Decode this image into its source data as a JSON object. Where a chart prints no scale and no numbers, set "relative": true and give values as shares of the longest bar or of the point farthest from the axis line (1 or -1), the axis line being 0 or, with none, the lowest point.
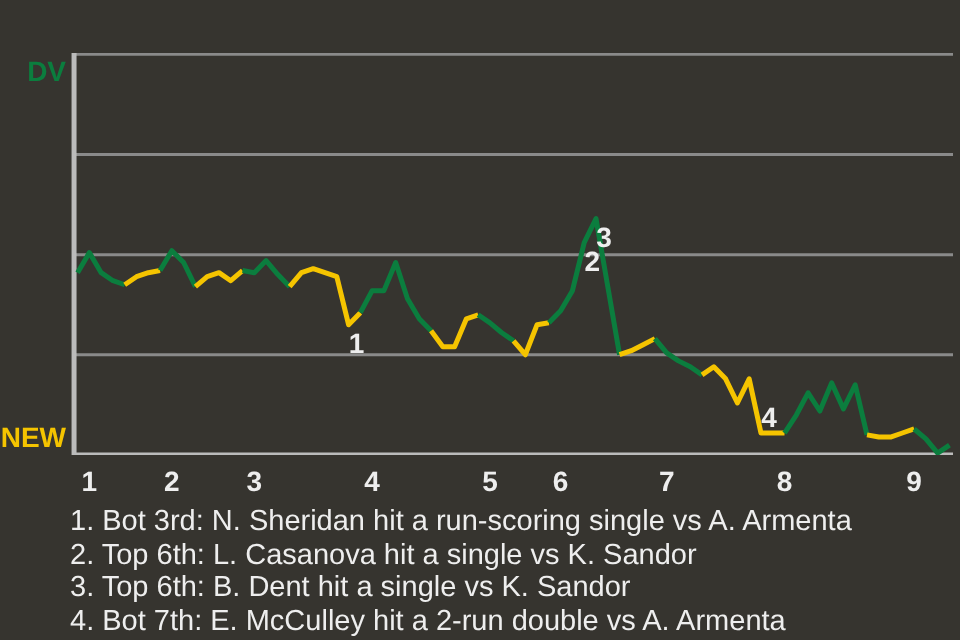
{
  "chart_data": {
    "type": "line",
    "relative": true,
    "marker": "none",
    "line_style": "solid",
    "ref_lines": [
      {
        "axis": "y",
        "value": 0.424,
        "color": "#8a8a8a"
      },
      {
        "axis": "y",
        "value": 0.847,
        "color": "#8a8a8a"
      },
      {
        "axis": "y",
        "value": 1.271,
        "color": "#8a8a8a"
      },
      {
        "axis": "y",
        "value": 1.695,
        "color": "#8a8a8a"
      }
    ],
    "categories": [
      null,
      "1",
      null,
      null,
      null,
      null,
      null,
      null,
      "2",
      null,
      null,
      null,
      null,
      null,
      null,
      "3",
      null,
      null,
      null,
      null,
      null,
      null,
      null,
      null,
      null,
      "4",
      null,
      null,
      null,
      null,
      null,
      null,
      null,
      null,
      null,
      "5",
      null,
      null,
      null,
      null,
      null,
      "6",
      null,
      null,
      null,
      null,
      null,
      null,
      null,
      null,
      "7",
      null,
      null,
      null,
      null,
      null,
      null,
      null,
      null,
      null,
      "8",
      null,
      null,
      null,
      null,
      null,
      null,
      null,
      null,
      null,
      null,
      "9",
      null,
      null,
      null
    ],
    "series": [
      {
        "color": "#0b7d3e",
        "values": [
          0.771,
          0.856,
          0.771,
          0.737,
          0.72,
          null,
          null,
          null,
          null,
          null,
          null,
          null,
          null,
          null,
          null,
          null,
          null,
          null,
          null,
          null,
          null,
          null,
          null,
          null,
          null,
          null,
          null,
          null,
          null,
          null,
          null,
          null,
          null,
          null,
          null,
          null,
          null,
          null,
          null,
          null,
          null,
          null,
          null,
          null,
          null,
          null,
          null,
          null,
          null,
          null,
          null,
          null,
          null,
          null,
          null,
          null,
          null,
          null,
          null,
          null,
          null,
          null,
          null,
          null,
          null,
          null,
          null,
          null,
          null,
          null,
          null,
          null,
          null,
          null,
          null
        ]
      },
      {
        "color": "#f5c400",
        "values": [
          null,
          null,
          null,
          null,
          0.72,
          0.754,
          0.771,
          0.78,
          null,
          null,
          null,
          null,
          null,
          null,
          null,
          null,
          null,
          null,
          null,
          null,
          null,
          null,
          null,
          null,
          null,
          null,
          null,
          null,
          null,
          null,
          null,
          null,
          null,
          null,
          null,
          null,
          null,
          null,
          null,
          null,
          null,
          null,
          null,
          null,
          null,
          null,
          null,
          null,
          null,
          null,
          null,
          null,
          null,
          null,
          null,
          null,
          null,
          null,
          null,
          null,
          null,
          null,
          null,
          null,
          null,
          null,
          null,
          null,
          null,
          null,
          null,
          null,
          null,
          null,
          null
        ]
      },
      {
        "color": "#0b7d3e",
        "values": [
          null,
          null,
          null,
          null,
          null,
          null,
          null,
          0.78,
          0.864,
          0.814,
          0.712,
          null,
          null,
          null,
          null,
          null,
          null,
          null,
          null,
          null,
          null,
          null,
          null,
          null,
          null,
          null,
          null,
          null,
          null,
          null,
          null,
          null,
          null,
          null,
          null,
          null,
          null,
          null,
          null,
          null,
          null,
          null,
          null,
          null,
          null,
          null,
          null,
          null,
          null,
          null,
          null,
          null,
          null,
          null,
          null,
          null,
          null,
          null,
          null,
          null,
          null,
          null,
          null,
          null,
          null,
          null,
          null,
          null,
          null,
          null,
          null,
          null,
          null,
          null,
          null
        ]
      },
      {
        "color": "#f5c400",
        "values": [
          null,
          null,
          null,
          null,
          null,
          null,
          null,
          null,
          null,
          null,
          0.712,
          0.754,
          0.771,
          0.737,
          0.78,
          null,
          null,
          null,
          null,
          null,
          null,
          null,
          null,
          null,
          null,
          null,
          null,
          null,
          null,
          null,
          null,
          null,
          null,
          null,
          null,
          null,
          null,
          null,
          null,
          null,
          null,
          null,
          null,
          null,
          null,
          null,
          null,
          null,
          null,
          null,
          null,
          null,
          null,
          null,
          null,
          null,
          null,
          null,
          null,
          null,
          null,
          null,
          null,
          null,
          null,
          null,
          null,
          null,
          null,
          null,
          null,
          null,
          null,
          null,
          null
        ]
      },
      {
        "color": "#0b7d3e",
        "values": [
          null,
          null,
          null,
          null,
          null,
          null,
          null,
          null,
          null,
          null,
          null,
          null,
          null,
          null,
          0.78,
          0.771,
          0.822,
          0.763,
          0.712,
          null,
          null,
          null,
          null,
          null,
          null,
          null,
          null,
          null,
          null,
          null,
          null,
          null,
          null,
          null,
          null,
          null,
          null,
          null,
          null,
          null,
          null,
          null,
          null,
          null,
          null,
          null,
          null,
          null,
          null,
          null,
          null,
          null,
          null,
          null,
          null,
          null,
          null,
          null,
          null,
          null,
          null,
          null,
          null,
          null,
          null,
          null,
          null,
          null,
          null,
          null,
          null,
          null,
          null,
          null,
          null
        ]
      },
      {
        "color": "#f5c400",
        "values": [
          null,
          null,
          null,
          null,
          null,
          null,
          null,
          null,
          null,
          null,
          null,
          null,
          null,
          null,
          null,
          null,
          null,
          null,
          0.712,
          0.771,
          0.788,
          0.771,
          0.754,
          0.551,
          0.602,
          null,
          null,
          null,
          null,
          null,
          null,
          null,
          null,
          null,
          null,
          null,
          null,
          null,
          null,
          null,
          null,
          null,
          null,
          null,
          null,
          null,
          null,
          null,
          null,
          null,
          null,
          null,
          null,
          null,
          null,
          null,
          null,
          null,
          null,
          null,
          null,
          null,
          null,
          null,
          null,
          null,
          null,
          null,
          null,
          null,
          null,
          null,
          null,
          null,
          null
        ]
      },
      {
        "color": "#0b7d3e",
        "values": [
          null,
          null,
          null,
          null,
          null,
          null,
          null,
          null,
          null,
          null,
          null,
          null,
          null,
          null,
          null,
          null,
          null,
          null,
          null,
          null,
          null,
          null,
          null,
          null,
          0.602,
          0.695,
          0.695,
          0.814,
          0.661,
          0.576,
          0.525,
          null,
          null,
          null,
          null,
          null,
          null,
          null,
          null,
          null,
          null,
          null,
          null,
          null,
          null,
          null,
          null,
          null,
          null,
          null,
          null,
          null,
          null,
          null,
          null,
          null,
          null,
          null,
          null,
          null,
          null,
          null,
          null,
          null,
          null,
          null,
          null,
          null,
          null,
          null,
          null,
          null,
          null,
          null,
          null
        ]
      },
      {
        "color": "#f5c400",
        "values": [
          null,
          null,
          null,
          null,
          null,
          null,
          null,
          null,
          null,
          null,
          null,
          null,
          null,
          null,
          null,
          null,
          null,
          null,
          null,
          null,
          null,
          null,
          null,
          null,
          null,
          null,
          null,
          null,
          null,
          null,
          0.525,
          0.458,
          0.458,
          0.576,
          0.593,
          null,
          null,
          null,
          null,
          null,
          null,
          null,
          null,
          null,
          null,
          null,
          null,
          null,
          null,
          null,
          null,
          null,
          null,
          null,
          null,
          null,
          null,
          null,
          null,
          null,
          null,
          null,
          null,
          null,
          null,
          null,
          null,
          null,
          null,
          null,
          null,
          null,
          null,
          null,
          null
        ]
      },
      {
        "color": "#0b7d3e",
        "values": [
          null,
          null,
          null,
          null,
          null,
          null,
          null,
          null,
          null,
          null,
          null,
          null,
          null,
          null,
          null,
          null,
          null,
          null,
          null,
          null,
          null,
          null,
          null,
          null,
          null,
          null,
          null,
          null,
          null,
          null,
          null,
          null,
          null,
          null,
          0.593,
          0.559,
          0.517,
          0.483,
          null,
          null,
          null,
          null,
          null,
          null,
          null,
          null,
          null,
          null,
          null,
          null,
          null,
          null,
          null,
          null,
          null,
          null,
          null,
          null,
          null,
          null,
          null,
          null,
          null,
          null,
          null,
          null,
          null,
          null,
          null,
          null,
          null,
          null,
          null,
          null,
          null
        ]
      },
      {
        "color": "#f5c400",
        "values": [
          null,
          null,
          null,
          null,
          null,
          null,
          null,
          null,
          null,
          null,
          null,
          null,
          null,
          null,
          null,
          null,
          null,
          null,
          null,
          null,
          null,
          null,
          null,
          null,
          null,
          null,
          null,
          null,
          null,
          null,
          null,
          null,
          null,
          null,
          null,
          null,
          null,
          0.483,
          0.424,
          0.551,
          0.559,
          null,
          null,
          null,
          null,
          null,
          null,
          null,
          null,
          null,
          null,
          null,
          null,
          null,
          null,
          null,
          null,
          null,
          null,
          null,
          null,
          null,
          null,
          null,
          null,
          null,
          null,
          null,
          null,
          null,
          null,
          null,
          null,
          null,
          null
        ]
      },
      {
        "color": "#0b7d3e",
        "values": [
          null,
          null,
          null,
          null,
          null,
          null,
          null,
          null,
          null,
          null,
          null,
          null,
          null,
          null,
          null,
          null,
          null,
          null,
          null,
          null,
          null,
          null,
          null,
          null,
          null,
          null,
          null,
          null,
          null,
          null,
          null,
          null,
          null,
          null,
          null,
          null,
          null,
          null,
          null,
          null,
          0.559,
          0.61,
          0.695,
          0.898,
          1,
          0.712,
          0.424,
          null,
          null,
          null,
          null,
          null,
          null,
          null,
          null,
          null,
          null,
          null,
          null,
          null,
          null,
          null,
          null,
          null,
          null,
          null,
          null,
          null,
          null,
          null,
          null,
          null,
          null,
          null,
          null
        ]
      },
      {
        "color": "#f5c400",
        "values": [
          null,
          null,
          null,
          null,
          null,
          null,
          null,
          null,
          null,
          null,
          null,
          null,
          null,
          null,
          null,
          null,
          null,
          null,
          null,
          null,
          null,
          null,
          null,
          null,
          null,
          null,
          null,
          null,
          null,
          null,
          null,
          null,
          null,
          null,
          null,
          null,
          null,
          null,
          null,
          null,
          null,
          null,
          null,
          null,
          null,
          null,
          0.424,
          0.441,
          0.466,
          0.492,
          null,
          null,
          null,
          null,
          null,
          null,
          null,
          null,
          null,
          null,
          null,
          null,
          null,
          null,
          null,
          null,
          null,
          null,
          null,
          null,
          null,
          null,
          null,
          null,
          null
        ]
      },
      {
        "color": "#0b7d3e",
        "values": [
          null,
          null,
          null,
          null,
          null,
          null,
          null,
          null,
          null,
          null,
          null,
          null,
          null,
          null,
          null,
          null,
          null,
          null,
          null,
          null,
          null,
          null,
          null,
          null,
          null,
          null,
          null,
          null,
          null,
          null,
          null,
          null,
          null,
          null,
          null,
          null,
          null,
          null,
          null,
          null,
          null,
          null,
          null,
          null,
          null,
          null,
          null,
          null,
          null,
          0.492,
          0.432,
          0.398,
          0.373,
          0.339,
          null,
          null,
          null,
          null,
          null,
          null,
          null,
          null,
          null,
          null,
          null,
          null,
          null,
          null,
          null,
          null,
          null,
          null,
          null,
          null,
          null
        ]
      },
      {
        "color": "#f5c400",
        "values": [
          null,
          null,
          null,
          null,
          null,
          null,
          null,
          null,
          null,
          null,
          null,
          null,
          null,
          null,
          null,
          null,
          null,
          null,
          null,
          null,
          null,
          null,
          null,
          null,
          null,
          null,
          null,
          null,
          null,
          null,
          null,
          null,
          null,
          null,
          null,
          null,
          null,
          null,
          null,
          null,
          null,
          null,
          null,
          null,
          null,
          null,
          null,
          null,
          null,
          null,
          null,
          null,
          null,
          0.339,
          0.373,
          0.322,
          0.22,
          0.322,
          0.093,
          0.093,
          0.093,
          null,
          null,
          null,
          null,
          null,
          null,
          null,
          null,
          null,
          null,
          null,
          null,
          null,
          null
        ]
      },
      {
        "color": "#0b7d3e",
        "values": [
          null,
          null,
          null,
          null,
          null,
          null,
          null,
          null,
          null,
          null,
          null,
          null,
          null,
          null,
          null,
          null,
          null,
          null,
          null,
          null,
          null,
          null,
          null,
          null,
          null,
          null,
          null,
          null,
          null,
          null,
          null,
          null,
          null,
          null,
          null,
          null,
          null,
          null,
          null,
          null,
          null,
          null,
          null,
          null,
          null,
          null,
          null,
          null,
          null,
          null,
          null,
          null,
          null,
          null,
          null,
          null,
          null,
          null,
          null,
          null,
          0.093,
          0.169,
          0.263,
          0.186,
          0.305,
          0.195,
          0.297,
          0.085,
          null,
          null,
          null,
          null,
          null,
          null,
          null
        ]
      },
      {
        "color": "#f5c400",
        "values": [
          null,
          null,
          null,
          null,
          null,
          null,
          null,
          null,
          null,
          null,
          null,
          null,
          null,
          null,
          null,
          null,
          null,
          null,
          null,
          null,
          null,
          null,
          null,
          null,
          null,
          null,
          null,
          null,
          null,
          null,
          null,
          null,
          null,
          null,
          null,
          null,
          null,
          null,
          null,
          null,
          null,
          null,
          null,
          null,
          null,
          null,
          null,
          null,
          null,
          null,
          null,
          null,
          null,
          null,
          null,
          null,
          null,
          null,
          null,
          null,
          null,
          null,
          null,
          null,
          null,
          null,
          null,
          0.085,
          0.076,
          0.076,
          0.093,
          0.11,
          null,
          null,
          null
        ]
      },
      {
        "color": "#0b7d3e",
        "values": [
          null,
          null,
          null,
          null,
          null,
          null,
          null,
          null,
          null,
          null,
          null,
          null,
          null,
          null,
          null,
          null,
          null,
          null,
          null,
          null,
          null,
          null,
          null,
          null,
          null,
          null,
          null,
          null,
          null,
          null,
          null,
          null,
          null,
          null,
          null,
          null,
          null,
          null,
          null,
          null,
          null,
          null,
          null,
          null,
          null,
          null,
          null,
          null,
          null,
          null,
          null,
          null,
          null,
          null,
          null,
          null,
          null,
          null,
          null,
          null,
          null,
          null,
          null,
          null,
          null,
          null,
          null,
          null,
          null,
          null,
          null,
          0.11,
          0.068,
          0.008,
          0.042
        ]
      }
    ],
    "annotations": [
      "DV",
      "NEW",
      {
        "text": "1",
        "y": 0.551
      },
      {
        "text": "2",
        "y": 0.898
      },
      {
        "text": "3",
        "y": 1
      },
      {
        "text": "4",
        "y": 0.093
      },
      "1. Bot 3rd: N. Sheridan hit a run-scoring single vs A. Armenta",
      "2. Top 6th: L. Casanova hit a single vs K. Sandor",
      "3. Top 6th: B. Dent hit a single vs K. Sandor",
      "4. Bot 7th: E. McCulley hit a 2-run double vs A. Armenta"
    ]
  }
}
